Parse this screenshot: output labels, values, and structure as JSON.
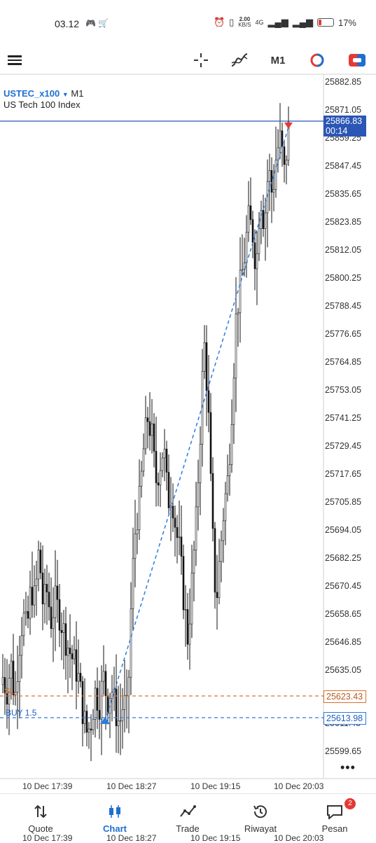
{
  "status": {
    "time": "03.12",
    "speed": "2.00",
    "speed_unit": "KB/S",
    "network": "4G",
    "battery": "17%"
  },
  "toolbar": {
    "timeframe": "M1"
  },
  "chart_header": {
    "symbol": "USTEC_x100",
    "timeframe": "M1",
    "description": "US Tech 100 Index"
  },
  "price_axis": [
    "25882.85",
    "25871.05",
    "25859.25",
    "25847.45",
    "25835.65",
    "25823.85",
    "25812.05",
    "25800.25",
    "25788.45",
    "25776.65",
    "25764.85",
    "25753.05",
    "25741.25",
    "25729.45",
    "25717.65",
    "25705.85",
    "25694.05",
    "25682.25",
    "25670.45",
    "25658.65",
    "25646.85",
    "25635.05",
    "25611.45",
    "25599.65"
  ],
  "current_price": {
    "price": "25866.83",
    "countdown": "00:14"
  },
  "sl_line": {
    "label": "SL",
    "price": "25623.43"
  },
  "buy_line": {
    "label": "BUY 1.5",
    "price": "25613.98"
  },
  "time_axis": [
    "10 Dec 17:39",
    "10 Dec 18:27",
    "10 Dec 19:15",
    "10 Dec 20:03"
  ],
  "nav": {
    "quote": "Quote",
    "chart": "Chart",
    "trade": "Trade",
    "history": "Riwayat",
    "messages": "Pesan",
    "messages_badge": "2"
  },
  "colors": {
    "accent": "#1e6fd0",
    "sl": "#d9702c",
    "buy": "#2d7be0",
    "current": "#2b56b5"
  },
  "chart_data": {
    "type": "candlestick",
    "symbol": "USTEC_x100",
    "timeframe": "M1",
    "y_range": [
      25594,
      25888
    ],
    "path_prices": [
      25636,
      25630,
      25642,
      25626,
      25648,
      25662,
      25655,
      25674,
      25668,
      25690,
      25666,
      25672,
      25660,
      25668,
      25663,
      25656,
      25650,
      25645,
      25641,
      25634,
      25620,
      25612,
      25618,
      25630,
      25625,
      25636,
      25626,
      25632,
      25622,
      25616,
      25626,
      25620,
      25672,
      25700,
      25710,
      25732,
      25745,
      25738,
      25718,
      25725,
      25733,
      25710,
      25714,
      25698,
      25688,
      25668,
      25652,
      25676,
      25700,
      25736,
      25778,
      25752,
      25700,
      25666,
      25688,
      25708,
      25720,
      25752,
      25788,
      25800,
      25812,
      25828,
      25824,
      25808,
      25840,
      25826,
      25850,
      25838,
      25856,
      25862,
      25847,
      25866
    ]
  }
}
